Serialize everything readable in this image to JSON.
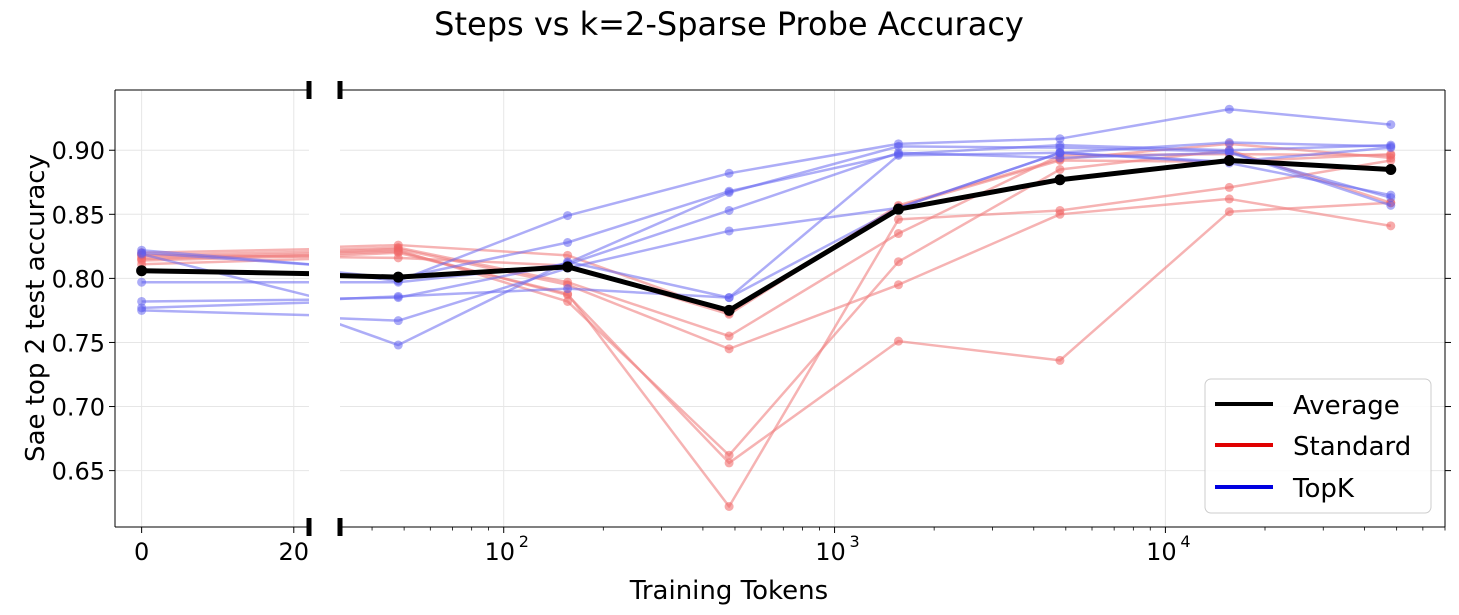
{
  "chart_data": {
    "type": "line",
    "title": "Steps vs k=2-Sparse Probe Accuracy",
    "xlabel": "Training Tokens",
    "ylabel": "Sae top 2 test accuracy",
    "xscale": "broken axis: linear segment (0 to 22) then log segment",
    "xlim_left": [
      -3.5,
      22
    ],
    "xlim_right": [
      32,
      70000
    ],
    "ylim": [
      0.606,
      0.947
    ],
    "xticks_left": [
      {
        "value": 0,
        "label": "0"
      },
      {
        "value": 20,
        "label": "20"
      }
    ],
    "xticks_right": [
      {
        "value": 100,
        "label": "10",
        "exp": "2"
      },
      {
        "value": 1000,
        "label": "10",
        "exp": "3"
      },
      {
        "value": 10000,
        "label": "10",
        "exp": "4"
      }
    ],
    "yticks": [
      0.65,
      0.7,
      0.75,
      0.8,
      0.85,
      0.9
    ],
    "ytick_labels": [
      "0.65",
      "0.70",
      "0.75",
      "0.80",
      "0.85",
      "0.90"
    ],
    "grid": true,
    "legend": {
      "position": "bottom-right",
      "entries": [
        {
          "label": "Average",
          "color": "#000000"
        },
        {
          "label": "Standard",
          "color": "#e00000"
        },
        {
          "label": "TopK",
          "color": "#0000e0"
        }
      ]
    },
    "x": [
      0,
      48,
      156,
      480,
      1560,
      4800,
      15600,
      48000
    ],
    "series": [
      {
        "group": "standard",
        "values": [
          0.82,
          0.826,
          0.818,
          0.773,
          0.857,
          0.893,
          0.905,
          0.894
        ]
      },
      {
        "group": "standard",
        "values": [
          0.818,
          0.824,
          0.797,
          0.755,
          0.835,
          0.896,
          0.897,
          0.896
        ]
      },
      {
        "group": "standard",
        "values": [
          0.816,
          0.823,
          0.795,
          0.745,
          0.795,
          0.85,
          0.862,
          0.841
        ]
      },
      {
        "group": "standard",
        "values": [
          0.815,
          0.822,
          0.782,
          0.662,
          0.813,
          0.885,
          0.9,
          0.859
        ]
      },
      {
        "group": "standard",
        "values": [
          0.814,
          0.821,
          0.787,
          0.656,
          0.751,
          0.736,
          0.852,
          0.859
        ]
      },
      {
        "group": "standard",
        "values": [
          0.811,
          0.82,
          0.788,
          0.622,
          0.846,
          0.853,
          0.871,
          0.892
        ]
      },
      {
        "group": "standard",
        "values": [
          0.818,
          0.816,
          0.81,
          0.772,
          0.856,
          0.892,
          0.891,
          0.897
        ]
      },
      {
        "group": "topk",
        "values": [
          0.822,
          0.798,
          0.849,
          0.882,
          0.905,
          0.909,
          0.932,
          0.92
        ]
      },
      {
        "group": "topk",
        "values": [
          0.82,
          0.8,
          0.828,
          0.868,
          0.897,
          0.904,
          0.9,
          0.904
        ]
      },
      {
        "group": "topk",
        "values": [
          0.797,
          0.797,
          0.811,
          0.853,
          0.898,
          0.894,
          0.898,
          0.863
        ]
      },
      {
        "group": "topk",
        "values": [
          0.782,
          0.785,
          0.812,
          0.867,
          0.903,
          0.902,
          0.899,
          0.857
        ]
      },
      {
        "group": "topk",
        "values": [
          0.777,
          0.786,
          0.792,
          0.785,
          0.855,
          0.898,
          0.906,
          0.903
        ]
      },
      {
        "group": "topk",
        "values": [
          0.775,
          0.767,
          0.808,
          0.837,
          0.855,
          0.898,
          0.89,
          0.865
        ]
      },
      {
        "group": "topk",
        "values": [
          0.819,
          0.748,
          0.813,
          0.785,
          0.896,
          0.898,
          0.891,
          0.902
        ]
      },
      {
        "group": "average",
        "values": [
          0.806,
          0.801,
          0.809,
          0.775,
          0.854,
          0.877,
          0.892,
          0.885
        ]
      }
    ]
  }
}
